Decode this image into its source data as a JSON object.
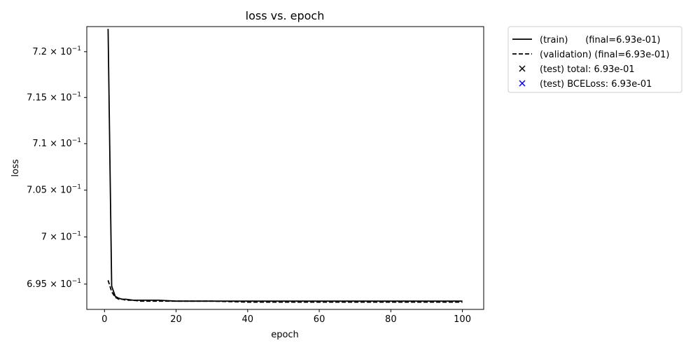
{
  "chart_data": {
    "type": "line",
    "title": "loss vs. epoch",
    "xlabel": "epoch",
    "ylabel": "loss",
    "yscale": "log",
    "xlim": [
      -4.95,
      105.95
    ],
    "ylim": [
      0.69233,
      0.72275
    ],
    "grid": false,
    "legend_position": "outside-right-top",
    "x_ticks": [
      0,
      20,
      40,
      60,
      80,
      100
    ],
    "y_ticks": [
      {
        "value": 0.695,
        "mantissa": "6.95",
        "label": "6.95 × 10^-1"
      },
      {
        "value": 0.7,
        "mantissa": "7",
        "label": "7 × 10^-1"
      },
      {
        "value": 0.705,
        "mantissa": "7.05",
        "label": "7.05 × 10^-1"
      },
      {
        "value": 0.71,
        "mantissa": "7.1",
        "label": "7.1 × 10^-1"
      },
      {
        "value": 0.715,
        "mantissa": "7.15",
        "label": "7.15 × 10^-1"
      },
      {
        "value": 0.72,
        "mantissa": "7.2",
        "label": "7.2 × 10^-1"
      }
    ],
    "tick_times": "×",
    "tick_base": "10",
    "tick_exponent": "−1",
    "series": [
      {
        "name": "(train)      (final=6.93e-01)",
        "style": "solid",
        "color": "#000000",
        "x": [
          1,
          2,
          3,
          4,
          5,
          6,
          8,
          10,
          15,
          20,
          30,
          40,
          60,
          80,
          100
        ],
        "y": [
          0.7225,
          0.6948,
          0.6937,
          0.6935,
          0.6934,
          0.6934,
          0.6933,
          0.6933,
          0.6933,
          0.6932,
          0.6932,
          0.6932,
          0.6932,
          0.6932,
          0.6932
        ]
      },
      {
        "name": "(validation) (final=6.93e-01)",
        "style": "dashed",
        "color": "#000000",
        "x": [
          1,
          2,
          3,
          4,
          5,
          6,
          8,
          10,
          15,
          20,
          30,
          40,
          60,
          80,
          100
        ],
        "y": [
          0.6954,
          0.6942,
          0.6936,
          0.6934,
          0.6934,
          0.6933,
          0.6933,
          0.6932,
          0.6932,
          0.6932,
          0.6932,
          0.6931,
          0.6931,
          0.6931,
          0.6931
        ]
      }
    ],
    "legend_entries": [
      {
        "label": "(train)      (final=6.93e-01)",
        "marker": "line-solid",
        "color": "#000000"
      },
      {
        "label": "(validation) (final=6.93e-01)",
        "marker": "line-dashed",
        "color": "#000000"
      },
      {
        "label": "(test) total: 6.93e-01",
        "marker": "x",
        "color": "#000000"
      },
      {
        "label": "(test) BCELoss: 6.93e-01",
        "marker": "x",
        "color": "#0000ff"
      }
    ]
  }
}
